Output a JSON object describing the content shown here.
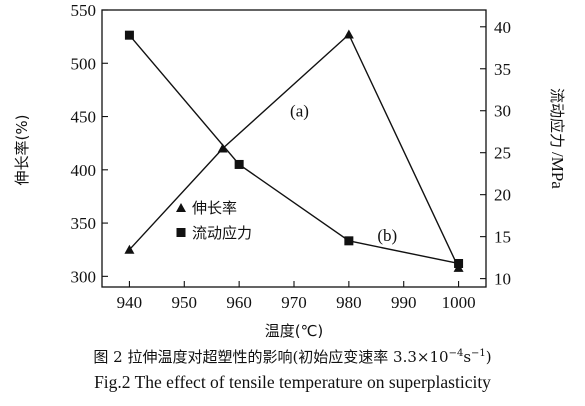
{
  "chart_data": {
    "type": "line",
    "xlabel": "温度(℃)",
    "ylabel_left": "伸长率(%)",
    "ylabel_right_zh": "流动应力",
    "ylabel_right_unit": "/MPa",
    "x_ticks": [
      940,
      950,
      960,
      970,
      980,
      990,
      1000
    ],
    "xlim": [
      935,
      1005
    ],
    "y_left_ticks": [
      300,
      350,
      400,
      450,
      500,
      550
    ],
    "y_left_lim": [
      290,
      550
    ],
    "y_right_ticks": [
      10,
      15,
      20,
      25,
      30,
      35,
      40
    ],
    "y_right_lim": [
      9,
      42
    ],
    "series": [
      {
        "name": "伸长率",
        "axis": "left",
        "marker": "triangle",
        "x": [
          940,
          957,
          980,
          1000
        ],
        "y": [
          325,
          420,
          527,
          308
        ]
      },
      {
        "name": "流动应力",
        "axis": "right",
        "marker": "square",
        "x": [
          940,
          960,
          980,
          1000
        ],
        "y": [
          39,
          23.6,
          14.5,
          11.8
        ]
      }
    ],
    "annotations": [
      {
        "text": "(a)",
        "x": 971,
        "y_left": 450
      },
      {
        "text": "(b)",
        "x": 987,
        "y_left": 333
      }
    ],
    "legend_position": "lower-left"
  },
  "caption": {
    "zh_prefix": "图 2  拉伸温度对超塑性的影响(初始应变速率 3.3×10",
    "zh_exp": "−4",
    "zh_mid": "s",
    "zh_exp2": "−1",
    "zh_suffix": ")",
    "en": "Fig.2  The effect of tensile temperature on superplasticity"
  },
  "colors": {
    "ink": "#111111",
    "background": "#ffffff"
  }
}
